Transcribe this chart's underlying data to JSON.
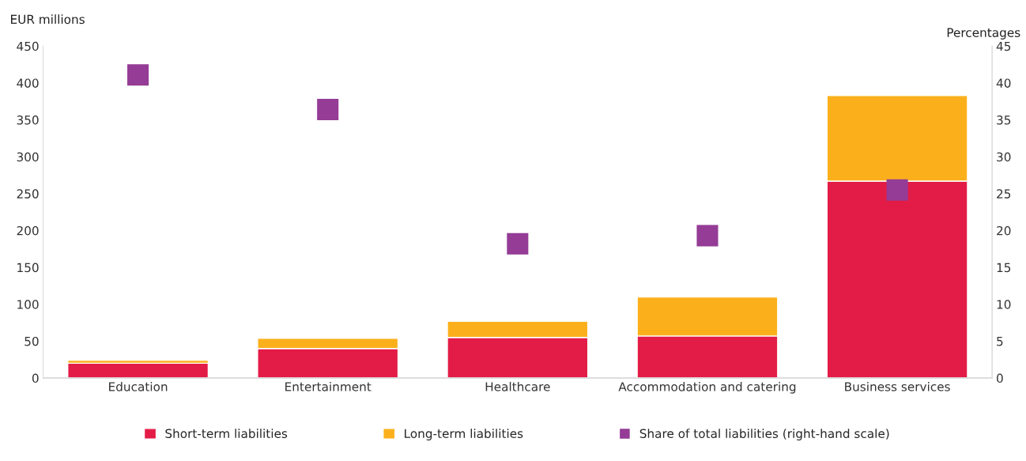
{
  "chart_data": {
    "type": "bar",
    "stacked": true,
    "ylabel": "EUR millions",
    "y2label": "Percentages",
    "categories": [
      "Education",
      "Entertainment",
      "Healthcare",
      "Accommodation and catering",
      "Business services"
    ],
    "series": [
      {
        "name": "Short-term liabilities",
        "color": "#e31c47",
        "values": [
          20,
          40,
          55,
          57,
          267
        ]
      },
      {
        "name": "Long-term liabilities",
        "color": "#fbb01b",
        "values": [
          4,
          14,
          22,
          53,
          116
        ]
      },
      {
        "name": "Share of total liabilities (right-hand scale)",
        "color": "#943c96",
        "type": "scatter",
        "axis": "y2",
        "marker": "square",
        "values": [
          41.1,
          36.4,
          18.2,
          19.3,
          25.5
        ]
      }
    ],
    "ylim": [
      0,
      450
    ],
    "yticks": [
      0,
      50,
      100,
      150,
      200,
      250,
      300,
      350,
      400,
      450
    ],
    "y2lim": [
      0,
      45
    ],
    "y2ticks": [
      0,
      5,
      10,
      15,
      20,
      25,
      30,
      35,
      40,
      45
    ],
    "grid": false,
    "legend": "bottom"
  }
}
